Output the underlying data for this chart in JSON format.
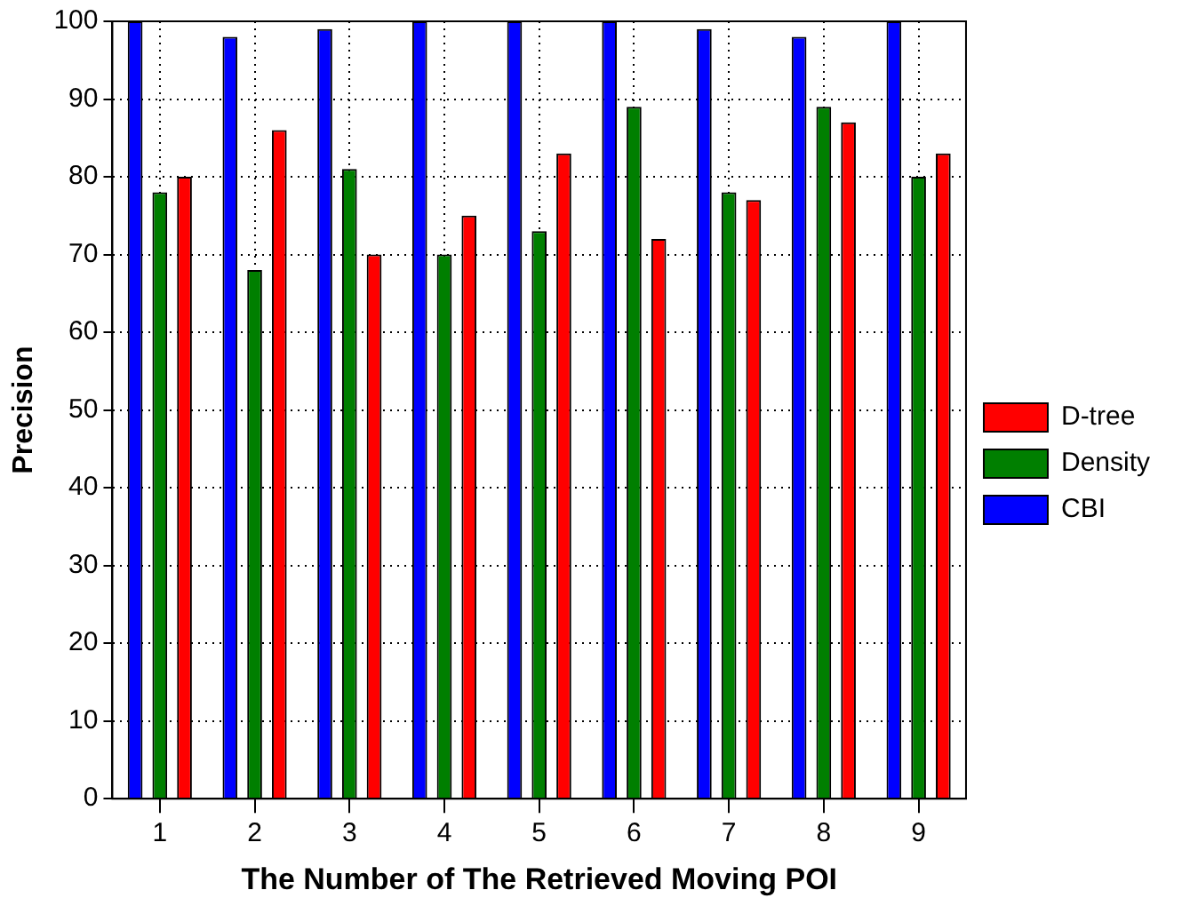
{
  "chart_data": {
    "type": "bar",
    "xlabel": "The Number of The Retrieved Moving POI",
    "ylabel": "Precision",
    "categories": [
      "1",
      "2",
      "3",
      "4",
      "5",
      "6",
      "7",
      "8",
      "9"
    ],
    "series": [
      {
        "name": "CBI",
        "color": "#0000ff",
        "values": [
          100,
          98,
          99,
          100,
          100,
          100,
          99,
          98,
          100
        ]
      },
      {
        "name": "Density",
        "color": "#007f00",
        "values": [
          78,
          68,
          81,
          70,
          73,
          89,
          78,
          89,
          80
        ]
      },
      {
        "name": "D-tree",
        "color": "#ff0000",
        "values": [
          80,
          86,
          70,
          75,
          83,
          72,
          77,
          87,
          83
        ]
      }
    ],
    "ylim": [
      0,
      100
    ],
    "yticks": [
      0,
      10,
      20,
      30,
      40,
      50,
      60,
      70,
      80,
      90,
      100
    ],
    "grid": true,
    "legend": "right"
  }
}
